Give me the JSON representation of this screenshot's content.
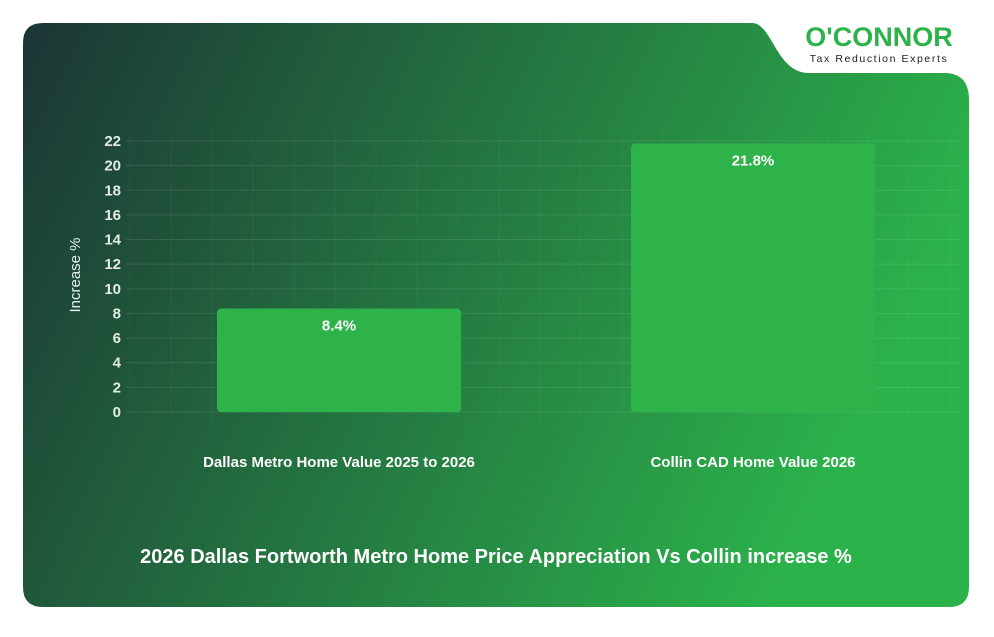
{
  "logo": {
    "name": "O'CONNOR",
    "tagline": "Tax Reduction Experts"
  },
  "colors": {
    "bar": "#2db34a",
    "bg_left": "#1c3535",
    "bg_right": "#2bb24b",
    "logo_green": "#2db34a"
  },
  "chart_data": {
    "type": "bar",
    "title": "2026 Dallas Fortworth Metro Home Price Appreciation Vs Collin increase %",
    "xlabel": "",
    "ylabel": "Increase %",
    "categories": [
      "Dallas Metro Home Value 2025 to 2026",
      "Collin CAD Home Value 2026"
    ],
    "values": [
      8.4,
      21.8
    ],
    "data_labels": [
      "8.4%",
      "21.8%"
    ],
    "ylim": [
      0,
      22
    ],
    "yticks": [
      0,
      2,
      4,
      6,
      8,
      10,
      12,
      14,
      16,
      18,
      20,
      22
    ],
    "grid": true
  }
}
